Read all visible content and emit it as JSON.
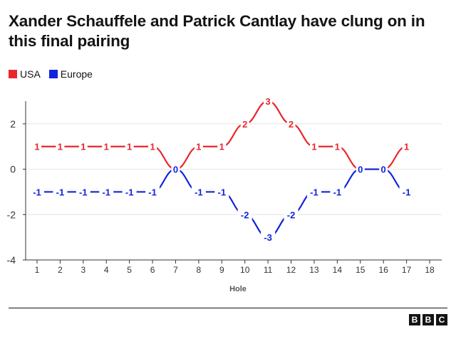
{
  "chart_data": {
    "type": "line",
    "title": "Xander Schauffele and Patrick Cantlay have clung on in this final pairing",
    "xlabel": "Hole",
    "ylabel": "",
    "x": [
      1,
      2,
      3,
      4,
      5,
      6,
      7,
      8,
      9,
      10,
      11,
      12,
      13,
      14,
      15,
      16,
      17
    ],
    "x_ticks": [
      "1",
      "2",
      "3",
      "4",
      "5",
      "6",
      "7",
      "8",
      "9",
      "10",
      "11",
      "12",
      "13",
      "14",
      "15",
      "16",
      "17",
      "18"
    ],
    "xlim": [
      1,
      18
    ],
    "y_ticks": [
      "2",
      "0",
      "-2",
      "-4"
    ],
    "ylim": [
      -4,
      3
    ],
    "grid": true,
    "legend_position": "top-left",
    "series": [
      {
        "name": "USA",
        "color": "#e8262c",
        "values": [
          1,
          1,
          1,
          1,
          1,
          1,
          0,
          1,
          1,
          2,
          3,
          2,
          1,
          1,
          0,
          0,
          1
        ],
        "labels": [
          "1",
          "1",
          "1",
          "1",
          "1",
          "1",
          "",
          "1",
          "1",
          "2",
          "3",
          "2",
          "1",
          "1",
          "",
          "",
          "1"
        ]
      },
      {
        "name": "Europe",
        "color": "#1122dd",
        "values": [
          -1,
          -1,
          -1,
          -1,
          -1,
          -1,
          0,
          -1,
          -1,
          -2,
          -3,
          -2,
          -1,
          -1,
          0,
          0,
          -1
        ],
        "labels": [
          "-1",
          "-1",
          "-1",
          "-1",
          "-1",
          "-1",
          "0",
          "-1",
          "-1",
          "-2",
          "-3",
          "-2",
          "-1",
          "-1",
          "0",
          "0",
          "-1"
        ]
      }
    ]
  },
  "footer": {
    "logo_letters": [
      "B",
      "B",
      "C"
    ]
  }
}
